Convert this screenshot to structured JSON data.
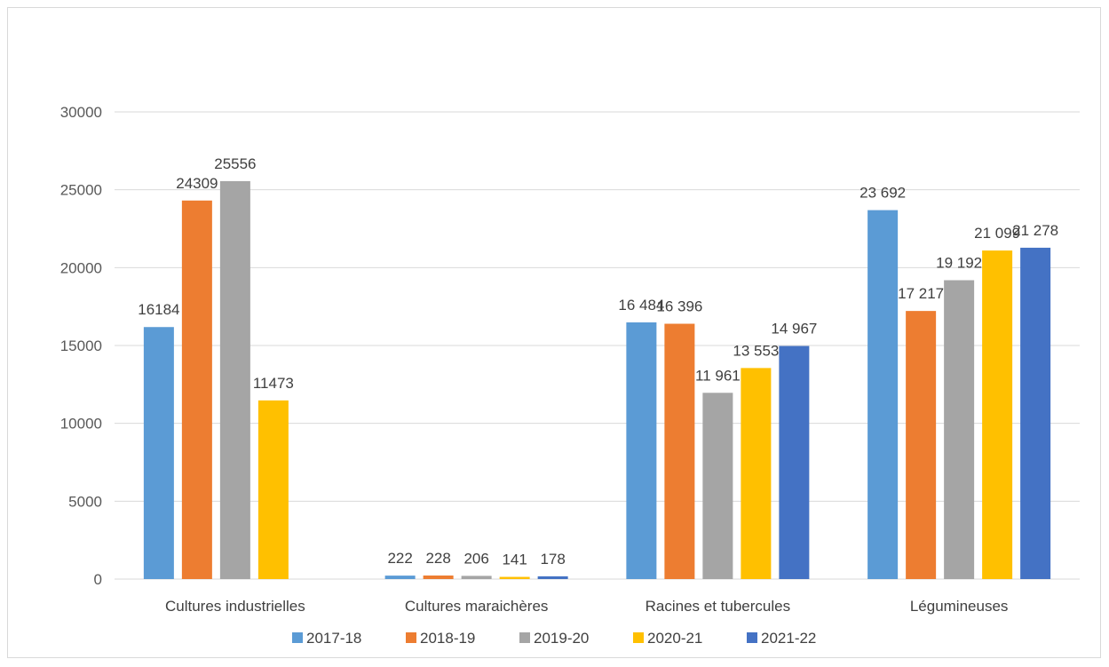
{
  "chart_data": {
    "type": "bar",
    "categories": [
      "Cultures industrielles",
      "Cultures maraichères",
      "Racines et tubercules",
      "Légumineuses"
    ],
    "series": [
      {
        "name": "2017-18",
        "color": "#5b9bd5",
        "values": [
          16184,
          222,
          16484,
          23692
        ],
        "labels": [
          "16184",
          "222",
          "16 484",
          "23 692"
        ]
      },
      {
        "name": "2018-19",
        "color": "#ed7d31",
        "values": [
          24309,
          228,
          16396,
          17217
        ],
        "labels": [
          "24309",
          "228",
          "16 396",
          "17 217"
        ]
      },
      {
        "name": "2019-20",
        "color": "#a5a5a5",
        "values": [
          25556,
          206,
          11961,
          19192
        ],
        "labels": [
          "25556",
          "206",
          "11 961",
          "19 192"
        ]
      },
      {
        "name": "2020-21",
        "color": "#ffc000",
        "values": [
          11473,
          141,
          13553,
          21099
        ],
        "labels": [
          "11473",
          "141",
          "13 553",
          "21 099"
        ]
      },
      {
        "name": "2021-22",
        "color": "#4472c4",
        "values": [
          null,
          178,
          14967,
          21278
        ],
        "labels": [
          "",
          "178",
          "14 967",
          "21 278"
        ]
      }
    ],
    "yticks": [
      0,
      5000,
      10000,
      15000,
      20000,
      25000,
      30000
    ],
    "ylim": [
      0,
      30000
    ],
    "grid": true,
    "legend": "bottom"
  }
}
